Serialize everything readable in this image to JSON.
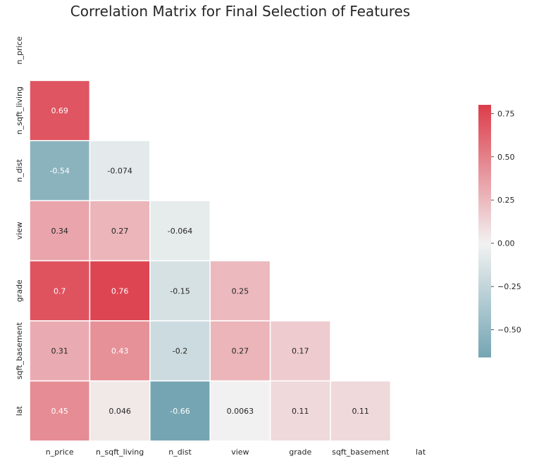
{
  "chart_data": {
    "type": "heatmap",
    "title": "Correlation Matrix for Final Selection of Features",
    "mask": "upper-triangle",
    "labels": [
      "n_price",
      "n_sqft_living",
      "n_dist",
      "view",
      "grade",
      "sqft_basement",
      "lat"
    ],
    "cells": [
      {
        "row": "n_sqft_living",
        "col": "n_price",
        "value": 0.69,
        "text": "0.69"
      },
      {
        "row": "n_dist",
        "col": "n_price",
        "value": -0.54,
        "text": "-0.54"
      },
      {
        "row": "n_dist",
        "col": "n_sqft_living",
        "value": -0.074,
        "text": "-0.074"
      },
      {
        "row": "view",
        "col": "n_price",
        "value": 0.34,
        "text": "0.34"
      },
      {
        "row": "view",
        "col": "n_sqft_living",
        "value": 0.27,
        "text": "0.27"
      },
      {
        "row": "view",
        "col": "n_dist",
        "value": -0.064,
        "text": "-0.064"
      },
      {
        "row": "grade",
        "col": "n_price",
        "value": 0.7,
        "text": "0.7"
      },
      {
        "row": "grade",
        "col": "n_sqft_living",
        "value": 0.76,
        "text": "0.76"
      },
      {
        "row": "grade",
        "col": "n_dist",
        "value": -0.15,
        "text": "-0.15"
      },
      {
        "row": "grade",
        "col": "view",
        "value": 0.25,
        "text": "0.25"
      },
      {
        "row": "sqft_basement",
        "col": "n_price",
        "value": 0.31,
        "text": "0.31"
      },
      {
        "row": "sqft_basement",
        "col": "n_sqft_living",
        "value": 0.43,
        "text": "0.43"
      },
      {
        "row": "sqft_basement",
        "col": "n_dist",
        "value": -0.2,
        "text": "-0.2"
      },
      {
        "row": "sqft_basement",
        "col": "view",
        "value": 0.27,
        "text": "0.27"
      },
      {
        "row": "sqft_basement",
        "col": "grade",
        "value": 0.17,
        "text": "0.17"
      },
      {
        "row": "lat",
        "col": "n_price",
        "value": 0.45,
        "text": "0.45"
      },
      {
        "row": "lat",
        "col": "n_sqft_living",
        "value": 0.046,
        "text": "0.046"
      },
      {
        "row": "lat",
        "col": "n_dist",
        "value": -0.66,
        "text": "-0.66"
      },
      {
        "row": "lat",
        "col": "view",
        "value": 0.0063,
        "text": "0.0063"
      },
      {
        "row": "lat",
        "col": "grade",
        "value": 0.11,
        "text": "0.11"
      },
      {
        "row": "lat",
        "col": "sqft_basement",
        "value": 0.11,
        "text": "0.11"
      }
    ],
    "colorbar": {
      "range": [
        -0.66,
        0.8
      ],
      "ticks": [
        {
          "value": 0.75,
          "label": "0.75"
        },
        {
          "value": 0.5,
          "label": "0.50"
        },
        {
          "value": 0.25,
          "label": "0.25"
        },
        {
          "value": 0.0,
          "label": "0.00"
        },
        {
          "value": -0.25,
          "label": "−0.25"
        },
        {
          "value": -0.5,
          "label": "−0.50"
        }
      ]
    },
    "colors": {
      "negative": "#5a95a5",
      "neutral": "#f2f2f2",
      "positive": "#dc3c4a"
    },
    "grid": false
  }
}
